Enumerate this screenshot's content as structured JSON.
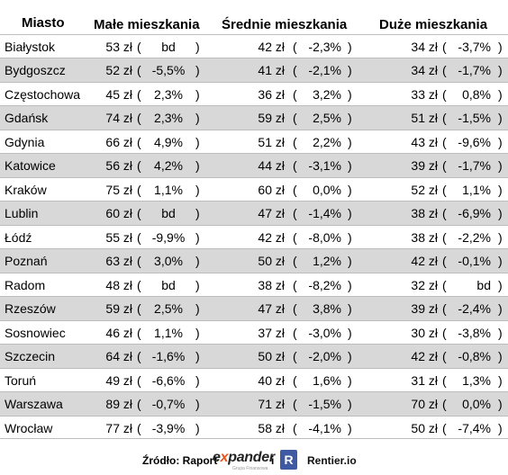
{
  "headers": {
    "city": "Miasto",
    "small": "Małe mieszkania",
    "medium": "Średnie mieszkania",
    "large": "Duże mieszkania"
  },
  "open_paren": "(",
  "close_paren": ")",
  "rows": [
    {
      "city": "Białystok",
      "small_price": "53 zł",
      "small_change": "bd",
      "medium_price": "42 zł",
      "medium_change": "-2,3%",
      "large_price": "34 zł",
      "large_change": "-3,7%"
    },
    {
      "city": "Bydgoszcz",
      "small_price": "52 zł",
      "small_change": "-5,5%",
      "medium_price": "41 zł",
      "medium_change": "-2,1%",
      "large_price": "34 zł",
      "large_change": "-1,7%"
    },
    {
      "city": "Częstochowa",
      "small_price": "45 zł",
      "small_change": "2,3%",
      "medium_price": "36 zł",
      "medium_change": "3,2%",
      "large_price": "33 zł",
      "large_change": "0,8%"
    },
    {
      "city": "Gdańsk",
      "small_price": "74 zł",
      "small_change": "2,3%",
      "medium_price": "59 zł",
      "medium_change": "2,5%",
      "large_price": "51 zł",
      "large_change": "-1,5%"
    },
    {
      "city": "Gdynia",
      "small_price": "66 zł",
      "small_change": "4,9%",
      "medium_price": "51 zł",
      "medium_change": "2,2%",
      "large_price": "43 zł",
      "large_change": "-9,6%"
    },
    {
      "city": "Katowice",
      "small_price": "56 zł",
      "small_change": "4,2%",
      "medium_price": "44 zł",
      "medium_change": "-3,1%",
      "large_price": "39 zł",
      "large_change": "-1,7%"
    },
    {
      "city": "Kraków",
      "small_price": "75 zł",
      "small_change": "1,1%",
      "medium_price": "60 zł",
      "medium_change": "0,0%",
      "large_price": "52 zł",
      "large_change": "1,1%"
    },
    {
      "city": "Lublin",
      "small_price": "60 zł",
      "small_change": "bd",
      "medium_price": "47 zł",
      "medium_change": "-1,4%",
      "large_price": "38 zł",
      "large_change": "-6,9%"
    },
    {
      "city": "Łódź",
      "small_price": "55 zł",
      "small_change": "-9,9%",
      "medium_price": "42 zł",
      "medium_change": "-8,0%",
      "large_price": "38 zł",
      "large_change": "-2,2%"
    },
    {
      "city": "Poznań",
      "small_price": "63 zł",
      "small_change": "3,0%",
      "medium_price": "50 zł",
      "medium_change": "1,2%",
      "large_price": "42 zł",
      "large_change": "-0,1%"
    },
    {
      "city": "Radom",
      "small_price": "48 zł",
      "small_change": "bd",
      "medium_price": "38 zł",
      "medium_change": "-8,2%",
      "large_price": "32 zł",
      "large_change": "bd"
    },
    {
      "city": "Rzeszów",
      "small_price": "59 zł",
      "small_change": "2,5%",
      "medium_price": "47 zł",
      "medium_change": "3,8%",
      "large_price": "39 zł",
      "large_change": "-2,4%"
    },
    {
      "city": "Sosnowiec",
      "small_price": "46 zł",
      "small_change": "1,1%",
      "medium_price": "37 zł",
      "medium_change": "-3,0%",
      "large_price": "30 zł",
      "large_change": "-3,8%"
    },
    {
      "city": "Szczecin",
      "small_price": "64 zł",
      "small_change": "-1,6%",
      "medium_price": "50 zł",
      "medium_change": "-2,0%",
      "large_price": "42 zł",
      "large_change": "-0,8%"
    },
    {
      "city": "Toruń",
      "small_price": "49 zł",
      "small_change": "-6,6%",
      "medium_price": "40 zł",
      "medium_change": "1,6%",
      "large_price": "31 zł",
      "large_change": "1,3%"
    },
    {
      "city": "Warszawa",
      "small_price": "89 zł",
      "small_change": "-0,7%",
      "medium_price": "71 zł",
      "medium_change": "-1,5%",
      "large_price": "70 zł",
      "large_change": "0,0%"
    },
    {
      "city": "Wrocław",
      "small_price": "77 zł",
      "small_change": "-3,9%",
      "medium_price": "58 zł",
      "medium_change": "-4,1%",
      "large_price": "50 zł",
      "large_change": "-7,4%"
    }
  ],
  "footer": {
    "source_label": "Źródło: Raport",
    "brand1_pre": "e",
    "brand1_x": "x",
    "brand1_post": "pander",
    "brand1_sub": "Grupa Finansowa",
    "conjunction": "i",
    "brand2_logo": "R",
    "brand2": "Rentier.io"
  }
}
